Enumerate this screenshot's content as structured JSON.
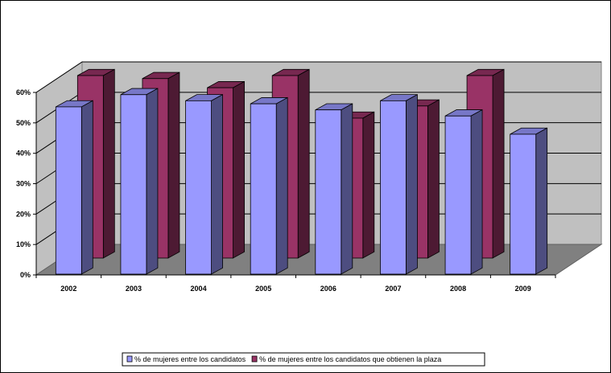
{
  "chart_data": {
    "type": "bar",
    "categories": [
      "2002",
      "2003",
      "2004",
      "2005",
      "2006",
      "2007",
      "2008",
      "2009"
    ],
    "series": [
      {
        "name": "% de mujeres entre los candidatos",
        "values": [
          55,
          59,
          57,
          56,
          54,
          57,
          52,
          46
        ],
        "color": "#9999ff"
      },
      {
        "name": "% de mujeres entre los candidatos que obtienen la plaza",
        "values": [
          60,
          59,
          56,
          60,
          46,
          50,
          60,
          null
        ],
        "color": "#993366"
      }
    ],
    "yticks": [
      "0%",
      "10%",
      "20%",
      "30%",
      "40%",
      "50%",
      "60%"
    ],
    "ylim": [
      0,
      60
    ],
    "grid": true,
    "legend_position": "bottom"
  }
}
